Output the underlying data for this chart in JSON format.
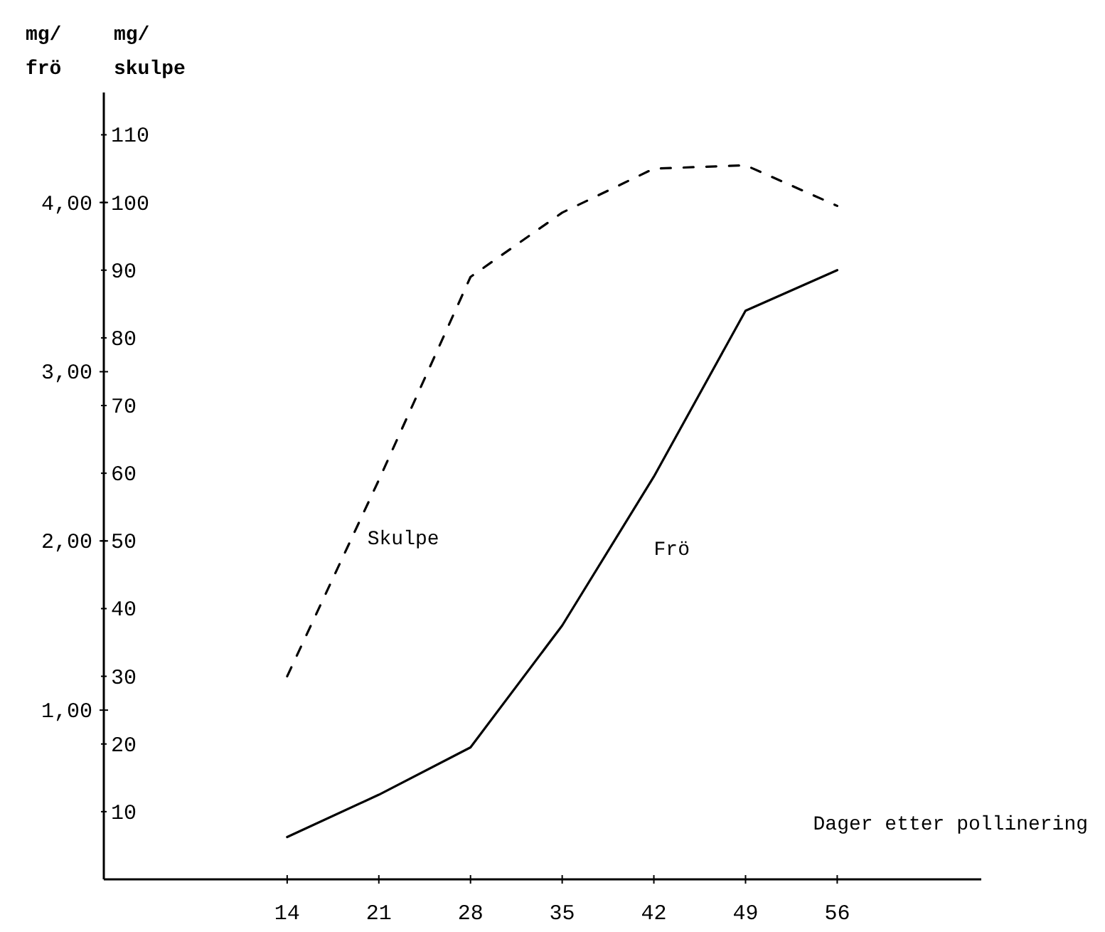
{
  "chart_data": {
    "type": "line",
    "xlabel": "Dager etter pollinering",
    "ylabel": "mg/\nfrö",
    "y2label": "mg/\nskulpe",
    "x": [
      14,
      21,
      28,
      35,
      42,
      49,
      56
    ],
    "series": [
      {
        "name": "Skulpe",
        "color": "#000000",
        "axis": "y2",
        "line_style": "dashed",
        "values": [
          30,
          59,
          89,
          98.5,
          105,
          105.5,
          99.5
        ]
      },
      {
        "name": "Frö",
        "color": "#000000",
        "line_style": "solid",
        "values": [
          0.25,
          0.5,
          0.78,
          1.5,
          2.38,
          3.36,
          3.6
        ]
      }
    ],
    "xlim": [
      0,
      67
    ],
    "xticks": [
      14,
      21,
      28,
      35,
      42,
      49,
      56
    ],
    "ylim": [
      0,
      4.65
    ],
    "yticks": [
      {
        "value": 1,
        "label": "1,00"
      },
      {
        "value": 2,
        "label": "2,00"
      },
      {
        "value": 3,
        "label": "3,00"
      },
      {
        "value": 4,
        "label": "4,00"
      }
    ],
    "y2lim": [
      0,
      116.25
    ],
    "y2ticks": [
      10,
      20,
      30,
      40,
      50,
      60,
      70,
      80,
      90,
      100,
      110
    ],
    "grid": false,
    "legend": false,
    "marker": "none"
  }
}
